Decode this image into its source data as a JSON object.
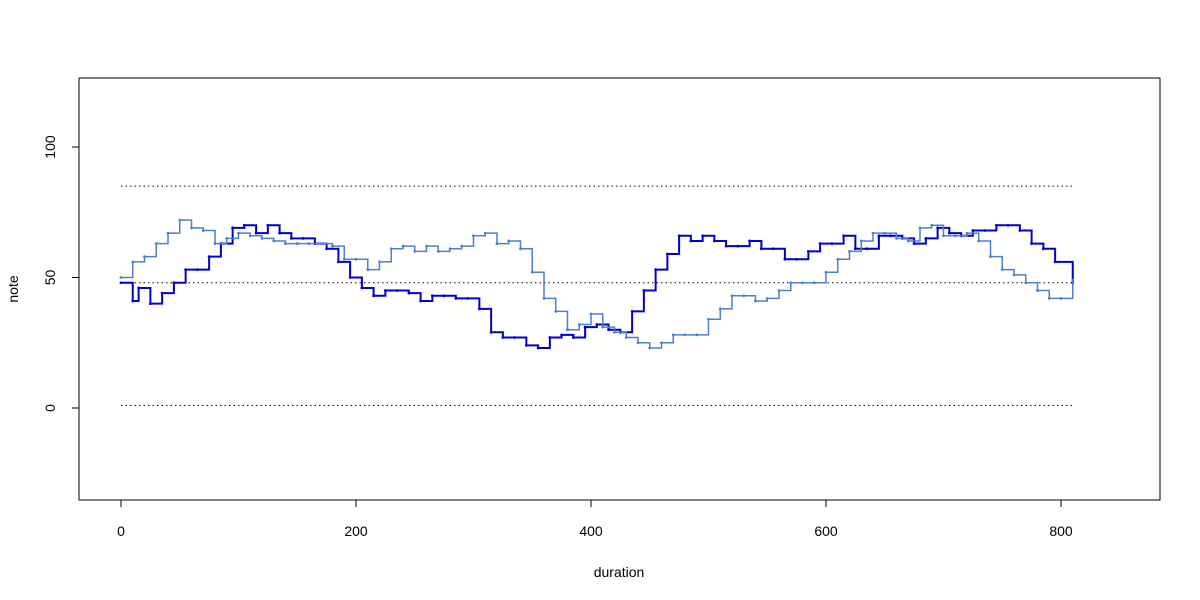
{
  "chart_data": {
    "type": "line",
    "step": true,
    "xlabel": "duration",
    "ylabel": "note",
    "xlim": [
      -35,
      875
    ],
    "ylim": [
      -35,
      125
    ],
    "x_ticks": [
      0,
      200,
      400,
      600,
      800
    ],
    "y_ticks": [
      0,
      50,
      100
    ],
    "grid": false,
    "legend": "none",
    "reference_lines": [
      1,
      48,
      85
    ],
    "colors": {
      "dark": "#0000cd",
      "light": "#4f7fcf",
      "reference": "#000000"
    },
    "series": [
      {
        "color": "dark",
        "x": [
          0,
          10,
          15,
          25,
          35,
          45,
          55,
          65,
          75,
          85,
          95,
          105,
          115,
          125,
          135,
          145,
          155,
          165,
          175,
          185,
          195,
          205,
          215,
          225,
          235,
          245,
          255,
          265,
          275,
          285,
          295,
          305,
          315,
          325,
          335,
          345,
          355,
          365,
          375,
          385,
          395,
          405,
          415,
          425,
          435,
          445,
          455,
          465,
          475,
          485,
          495,
          505,
          515,
          525,
          535,
          545,
          555,
          565,
          575,
          585,
          595,
          605,
          615,
          625,
          635,
          645,
          655,
          665,
          675,
          685,
          695,
          705,
          715,
          725,
          735,
          745,
          755,
          765,
          775,
          785,
          795,
          810
        ],
        "y": [
          48,
          41,
          46,
          40,
          44,
          48,
          53,
          53,
          58,
          63,
          69,
          70,
          67,
          70,
          67,
          65,
          65,
          63,
          61,
          56,
          50,
          46,
          43,
          45,
          45,
          44,
          41,
          43,
          43,
          42,
          42,
          38,
          29,
          27,
          27,
          24,
          23,
          27,
          28,
          27,
          31,
          32,
          30,
          29,
          37,
          45,
          53,
          59,
          66,
          64,
          66,
          64,
          62,
          62,
          64,
          61,
          61,
          57,
          57,
          60,
          63,
          63,
          66,
          61,
          61,
          66,
          66,
          65,
          63,
          65,
          69,
          67,
          66,
          68,
          68,
          70,
          70,
          68,
          63,
          61,
          56,
          48
        ]
      },
      {
        "color": "light",
        "x": [
          0,
          10,
          20,
          30,
          40,
          50,
          60,
          70,
          80,
          90,
          100,
          110,
          120,
          130,
          140,
          150,
          160,
          170,
          180,
          190,
          200,
          210,
          220,
          230,
          240,
          250,
          260,
          270,
          280,
          290,
          300,
          310,
          320,
          330,
          340,
          350,
          360,
          370,
          380,
          390,
          400,
          410,
          420,
          430,
          440,
          450,
          460,
          470,
          480,
          490,
          500,
          510,
          520,
          530,
          540,
          550,
          560,
          570,
          580,
          590,
          600,
          610,
          620,
          630,
          640,
          650,
          660,
          670,
          680,
          690,
          700,
          710,
          720,
          730,
          740,
          750,
          760,
          770,
          780,
          790,
          800,
          810
        ],
        "y": [
          50,
          56,
          58,
          63,
          67,
          72,
          69,
          68,
          63,
          65,
          67,
          66,
          65,
          64,
          63,
          63,
          63,
          63,
          62,
          57,
          57,
          53,
          56,
          61,
          62,
          60,
          62,
          60,
          61,
          62,
          66,
          67,
          63,
          64,
          61,
          52,
          42,
          37,
          30,
          32,
          36,
          31,
          29,
          27,
          25,
          23,
          25,
          28,
          28,
          28,
          34,
          38,
          43,
          43,
          41,
          42,
          45,
          48,
          48,
          48,
          52,
          57,
          60,
          64,
          67,
          67,
          65,
          64,
          69,
          70,
          66,
          66,
          67,
          64,
          58,
          53,
          51,
          48,
          45,
          42,
          42,
          49
        ]
      }
    ]
  }
}
